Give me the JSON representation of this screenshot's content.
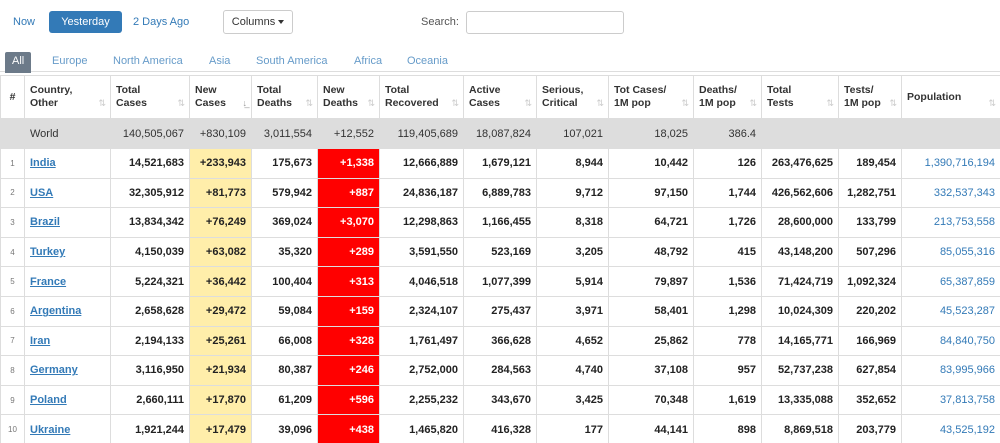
{
  "top": {
    "day_tabs": [
      "Now",
      "Yesterday",
      "2 Days Ago"
    ],
    "columns_label": "Columns",
    "search_label": "Search:",
    "search_value": ""
  },
  "regions": [
    "All",
    "Europe",
    "North America",
    "Asia",
    "South America",
    "Africa",
    "Oceania"
  ],
  "headers": {
    "rank": "#",
    "country": [
      "Country,",
      "Other"
    ],
    "total_cases": [
      "Total",
      "Cases"
    ],
    "new_cases": [
      "New",
      "Cases"
    ],
    "total_deaths": [
      "Total",
      "Deaths"
    ],
    "new_deaths": [
      "New",
      "Deaths"
    ],
    "total_recovered": [
      "Total",
      "Recovered"
    ],
    "active_cases": [
      "Active",
      "Cases"
    ],
    "serious": [
      "Serious,",
      "Critical"
    ],
    "cases_per_m": [
      "Tot Cases/",
      "1M pop"
    ],
    "deaths_per_m": [
      "Deaths/",
      "1M pop"
    ],
    "total_tests": [
      "Total",
      "Tests"
    ],
    "tests_per_m": [
      "Tests/",
      "1M pop"
    ],
    "population": [
      "Population",
      ""
    ]
  },
  "world": {
    "country": "World",
    "total_cases": "140,505,067",
    "new_cases": "+830,109",
    "total_deaths": "3,011,554",
    "new_deaths": "+12,552",
    "total_recovered": "119,405,689",
    "active_cases": "18,087,824",
    "serious": "107,021",
    "cases_per_m": "18,025",
    "deaths_per_m": "386.4",
    "total_tests": "",
    "tests_per_m": "",
    "population": ""
  },
  "rows": [
    {
      "rank": "1",
      "country": "India",
      "total_cases": "14,521,683",
      "new_cases": "+233,943",
      "total_deaths": "175,673",
      "new_deaths": "+1,338",
      "total_recovered": "12,666,889",
      "active_cases": "1,679,121",
      "serious": "8,944",
      "cases_per_m": "10,442",
      "deaths_per_m": "126",
      "total_tests": "263,476,625",
      "tests_per_m": "189,454",
      "population": "1,390,716,194"
    },
    {
      "rank": "2",
      "country": "USA",
      "total_cases": "32,305,912",
      "new_cases": "+81,773",
      "total_deaths": "579,942",
      "new_deaths": "+887",
      "total_recovered": "24,836,187",
      "active_cases": "6,889,783",
      "serious": "9,712",
      "cases_per_m": "97,150",
      "deaths_per_m": "1,744",
      "total_tests": "426,562,606",
      "tests_per_m": "1,282,751",
      "population": "332,537,343"
    },
    {
      "rank": "3",
      "country": "Brazil",
      "total_cases": "13,834,342",
      "new_cases": "+76,249",
      "total_deaths": "369,024",
      "new_deaths": "+3,070",
      "total_recovered": "12,298,863",
      "active_cases": "1,166,455",
      "serious": "8,318",
      "cases_per_m": "64,721",
      "deaths_per_m": "1,726",
      "total_tests": "28,600,000",
      "tests_per_m": "133,799",
      "population": "213,753,558"
    },
    {
      "rank": "4",
      "country": "Turkey",
      "total_cases": "4,150,039",
      "new_cases": "+63,082",
      "total_deaths": "35,320",
      "new_deaths": "+289",
      "total_recovered": "3,591,550",
      "active_cases": "523,169",
      "serious": "3,205",
      "cases_per_m": "48,792",
      "deaths_per_m": "415",
      "total_tests": "43,148,200",
      "tests_per_m": "507,296",
      "population": "85,055,316"
    },
    {
      "rank": "5",
      "country": "France",
      "total_cases": "5,224,321",
      "new_cases": "+36,442",
      "total_deaths": "100,404",
      "new_deaths": "+313",
      "total_recovered": "4,046,518",
      "active_cases": "1,077,399",
      "serious": "5,914",
      "cases_per_m": "79,897",
      "deaths_per_m": "1,536",
      "total_tests": "71,424,719",
      "tests_per_m": "1,092,324",
      "population": "65,387,859"
    },
    {
      "rank": "6",
      "country": "Argentina",
      "total_cases": "2,658,628",
      "new_cases": "+29,472",
      "total_deaths": "59,084",
      "new_deaths": "+159",
      "total_recovered": "2,324,107",
      "active_cases": "275,437",
      "serious": "3,971",
      "cases_per_m": "58,401",
      "deaths_per_m": "1,298",
      "total_tests": "10,024,309",
      "tests_per_m": "220,202",
      "population": "45,523,287"
    },
    {
      "rank": "7",
      "country": "Iran",
      "total_cases": "2,194,133",
      "new_cases": "+25,261",
      "total_deaths": "66,008",
      "new_deaths": "+328",
      "total_recovered": "1,761,497",
      "active_cases": "366,628",
      "serious": "4,652",
      "cases_per_m": "25,862",
      "deaths_per_m": "778",
      "total_tests": "14,165,771",
      "tests_per_m": "166,969",
      "population": "84,840,750"
    },
    {
      "rank": "8",
      "country": "Germany",
      "total_cases": "3,116,950",
      "new_cases": "+21,934",
      "total_deaths": "80,387",
      "new_deaths": "+246",
      "total_recovered": "2,752,000",
      "active_cases": "284,563",
      "serious": "4,740",
      "cases_per_m": "37,108",
      "deaths_per_m": "957",
      "total_tests": "52,737,238",
      "tests_per_m": "627,854",
      "population": "83,995,966"
    },
    {
      "rank": "9",
      "country": "Poland",
      "total_cases": "2,660,111",
      "new_cases": "+17,870",
      "total_deaths": "61,209",
      "new_deaths": "+596",
      "total_recovered": "2,255,232",
      "active_cases": "343,670",
      "serious": "3,425",
      "cases_per_m": "70,348",
      "deaths_per_m": "1,619",
      "total_tests": "13,335,088",
      "tests_per_m": "352,652",
      "population": "37,813,758"
    },
    {
      "rank": "10",
      "country": "Ukraine",
      "total_cases": "1,921,244",
      "new_cases": "+17,479",
      "total_deaths": "39,096",
      "new_deaths": "+438",
      "total_recovered": "1,465,820",
      "active_cases": "416,328",
      "serious": "177",
      "cases_per_m": "44,141",
      "deaths_per_m": "898",
      "total_tests": "8,869,518",
      "tests_per_m": "203,779",
      "population": "43,525,192"
    }
  ],
  "colors": {
    "accent": "#337ab7",
    "new_cases_bg": "#ffeeaa",
    "new_deaths_bg": "#ff0000",
    "world_row_bg": "#dddddd",
    "active_region_tab": "#6c7a89"
  }
}
